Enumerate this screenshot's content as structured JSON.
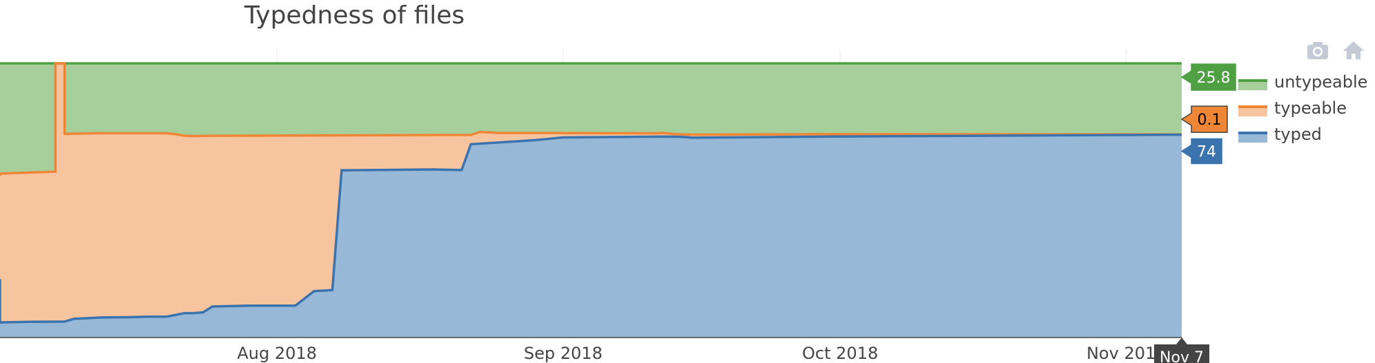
{
  "title": "Typedness of files",
  "modebar": {
    "camera_icon": "camera-icon",
    "home_icon": "home-icon"
  },
  "colors": {
    "typed": "#3a73ad",
    "typed_fill": "#97b9d7",
    "typeable": "#ee8636",
    "typeable_fill": "#f7c4a0",
    "untypeable": "#4ea042",
    "untypeable_fill": "#a6cf9c",
    "grid": "#e6ebe6"
  },
  "hover": {
    "untypeable": "25.8",
    "typeable": "0.1",
    "typed": "74",
    "x": "Nov 7"
  },
  "chart_data": {
    "type": "area",
    "stacked": true,
    "title": "Typedness of files",
    "xlabel": "",
    "ylabel": "",
    "ylim": [
      0,
      100
    ],
    "x_range": [
      "2018-07-02",
      "2018-11-07"
    ],
    "x_ticks": [
      {
        "date": "2018-08-01",
        "label": "Aug 2018"
      },
      {
        "date": "2018-09-01",
        "label": "Sep 2018"
      },
      {
        "date": "2018-10-01",
        "label": "Oct 2018"
      },
      {
        "date": "2018-11-01",
        "label": "Nov 2018"
      }
    ],
    "grid": true,
    "legend_position": "right",
    "series": [
      {
        "name": "untypeable",
        "color": "#4ea042",
        "fill": "#a6cf9c",
        "values_total": [
          [
            "2018-07-02",
            100
          ],
          [
            "2018-11-07",
            100
          ]
        ]
      },
      {
        "name": "typeable",
        "color": "#ee8636",
        "fill": "#f7c4a0",
        "values_cumulative": [
          [
            "2018-07-02",
            59
          ],
          [
            "2018-07-02",
            59.8
          ],
          [
            "2018-07-08",
            60.5
          ],
          [
            "2018-07-08",
            100
          ],
          [
            "2018-07-09",
            100
          ],
          [
            "2018-07-09",
            74.3
          ],
          [
            "2018-07-11",
            74.4
          ],
          [
            "2018-07-12",
            74.5
          ],
          [
            "2018-07-20",
            74.5
          ],
          [
            "2018-07-21",
            74.2
          ],
          [
            "2018-07-22",
            73.6
          ],
          [
            "2018-07-23",
            73.5
          ],
          [
            "2018-07-25",
            73.6
          ],
          [
            "2018-08-22",
            73.9
          ],
          [
            "2018-08-23",
            75
          ],
          [
            "2018-08-24",
            74.8
          ],
          [
            "2018-08-25",
            74.6
          ],
          [
            "2018-08-30",
            74.6
          ],
          [
            "2018-09-11",
            74.5
          ],
          [
            "2018-09-12",
            74.6
          ],
          [
            "2018-09-13",
            74.2
          ],
          [
            "2018-09-15",
            74
          ],
          [
            "2018-09-23",
            74.1
          ],
          [
            "2018-10-01",
            74.2
          ],
          [
            "2018-11-07",
            74.1
          ]
        ]
      },
      {
        "name": "typed",
        "color": "#3a73ad",
        "fill": "#97b9d7",
        "values": [
          [
            "2018-07-02",
            21.3
          ],
          [
            "2018-07-02",
            5.5
          ],
          [
            "2018-07-05",
            5.7
          ],
          [
            "2018-07-09",
            5.8
          ],
          [
            "2018-07-10",
            6.8
          ],
          [
            "2018-07-13",
            7.3
          ],
          [
            "2018-07-16",
            7.4
          ],
          [
            "2018-07-18",
            7.6
          ],
          [
            "2018-07-20",
            7.6
          ],
          [
            "2018-07-22",
            8.9
          ],
          [
            "2018-07-23",
            8.9
          ],
          [
            "2018-07-24",
            9.2
          ],
          [
            "2018-07-25",
            11.3
          ],
          [
            "2018-07-29",
            11.6
          ],
          [
            "2018-08-03",
            11.6
          ],
          [
            "2018-08-05",
            16.9
          ],
          [
            "2018-08-07",
            17.3
          ],
          [
            "2018-08-08",
            61
          ],
          [
            "2018-08-18",
            61.3
          ],
          [
            "2018-08-19",
            61.2
          ],
          [
            "2018-08-21",
            61.1
          ],
          [
            "2018-08-22",
            70.5
          ],
          [
            "2018-08-29",
            72
          ],
          [
            "2018-09-01",
            73
          ],
          [
            "2018-09-12",
            73.3
          ],
          [
            "2018-09-14",
            73.2
          ],
          [
            "2018-09-15",
            72.9
          ],
          [
            "2018-09-30",
            73.3
          ],
          [
            "2018-11-07",
            74
          ]
        ]
      }
    ]
  }
}
